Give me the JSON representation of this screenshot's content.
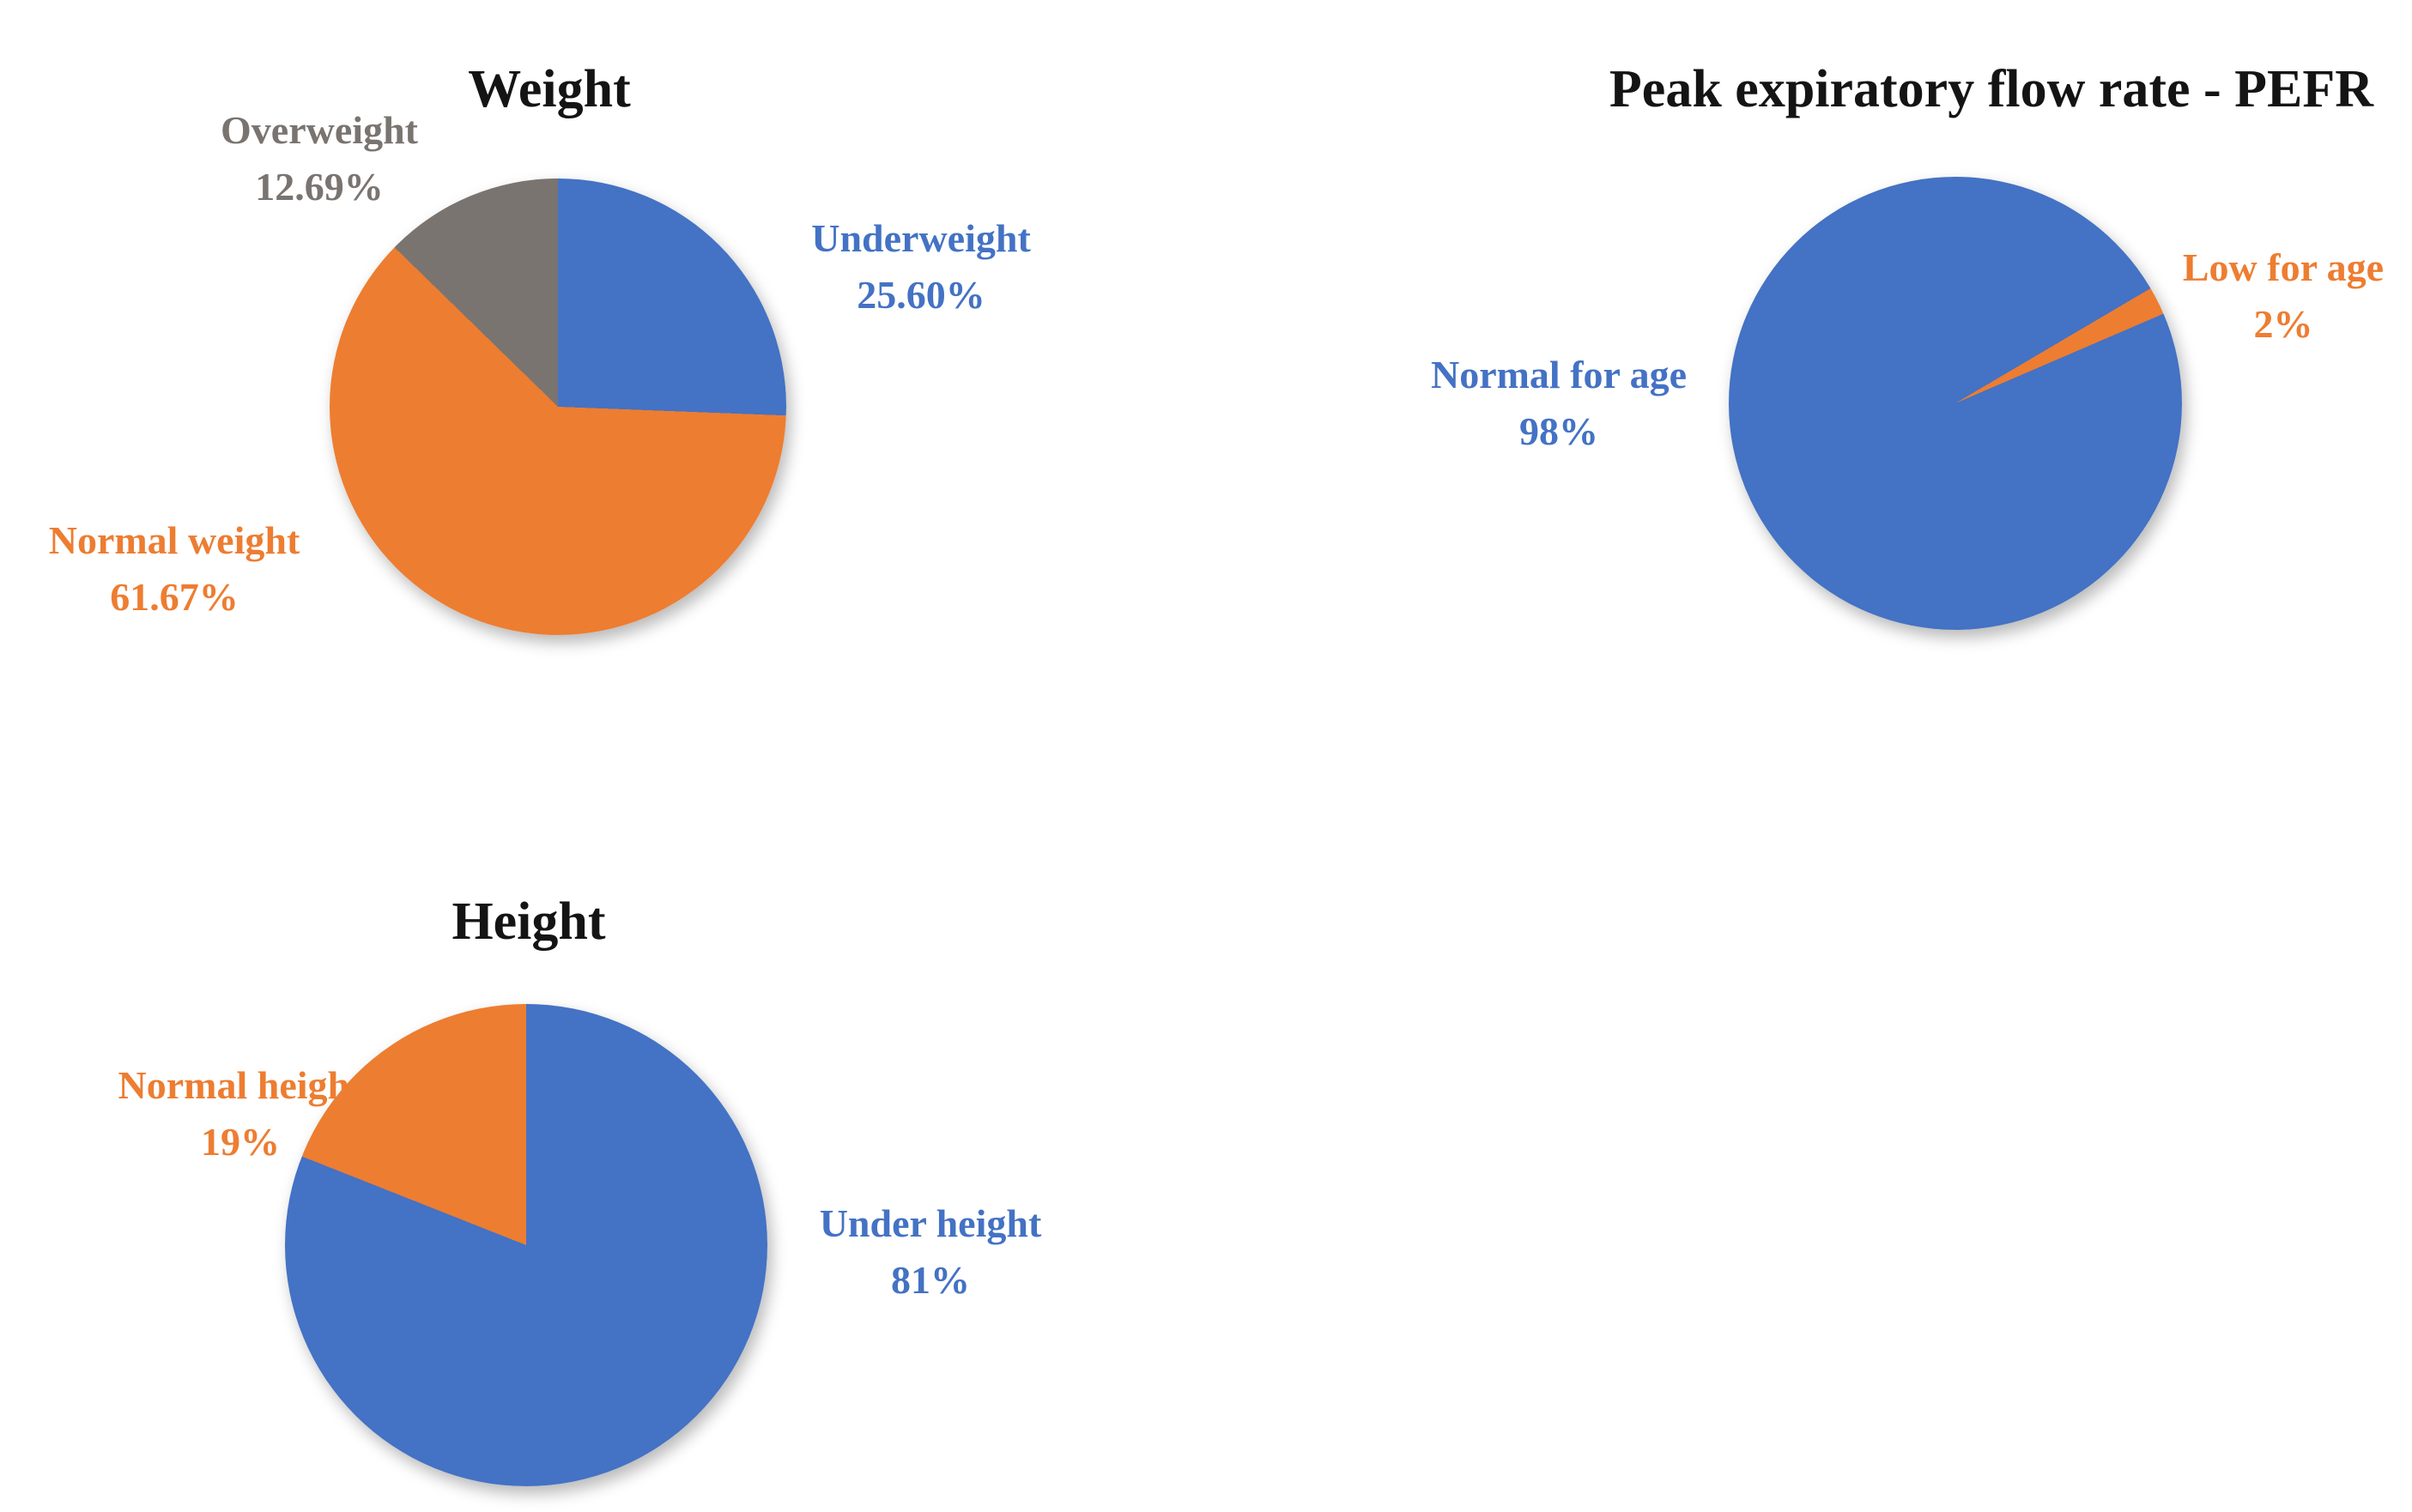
{
  "figure": {
    "background": "#ffffff",
    "title_color": "#141414"
  },
  "palette": {
    "blue": "#4472C4",
    "orange": "#ED7D31",
    "gray": "#7A7470"
  },
  "chart_data": [
    {
      "type": "pie",
      "title": "Weight",
      "rotation_deg": 0,
      "legend_position": "outside-callouts",
      "slices": [
        {
          "label": "Underweight",
          "value": 25.6,
          "pct_label": "25.60%",
          "color": "#4472C4"
        },
        {
          "label": "Normal weight",
          "value": 61.67,
          "pct_label": "61.67%",
          "color": "#ED7D31"
        },
        {
          "label": "Overweight",
          "value": 12.69,
          "pct_label": "12.69%",
          "color": "#7A7470"
        }
      ]
    },
    {
      "type": "pie",
      "title": "Peak expiratory flow rate - PEFR",
      "rotation_deg": 66.7,
      "legend_position": "outside-callouts",
      "slices": [
        {
          "label": "Normal for age",
          "value": 98,
          "pct_label": "98%",
          "color": "#4472C4"
        },
        {
          "label": "Low for age",
          "value": 2,
          "pct_label": "2%",
          "color": "#ED7D31"
        }
      ]
    },
    {
      "type": "pie",
      "title": "Height",
      "rotation_deg": 0,
      "legend_position": "outside-callouts",
      "slices": [
        {
          "label": "Under height",
          "value": 81,
          "pct_label": "81%",
          "color": "#4472C4"
        },
        {
          "label": "Normal height",
          "value": 19,
          "pct_label": "19%",
          "color": "#ED7D31"
        }
      ]
    }
  ]
}
